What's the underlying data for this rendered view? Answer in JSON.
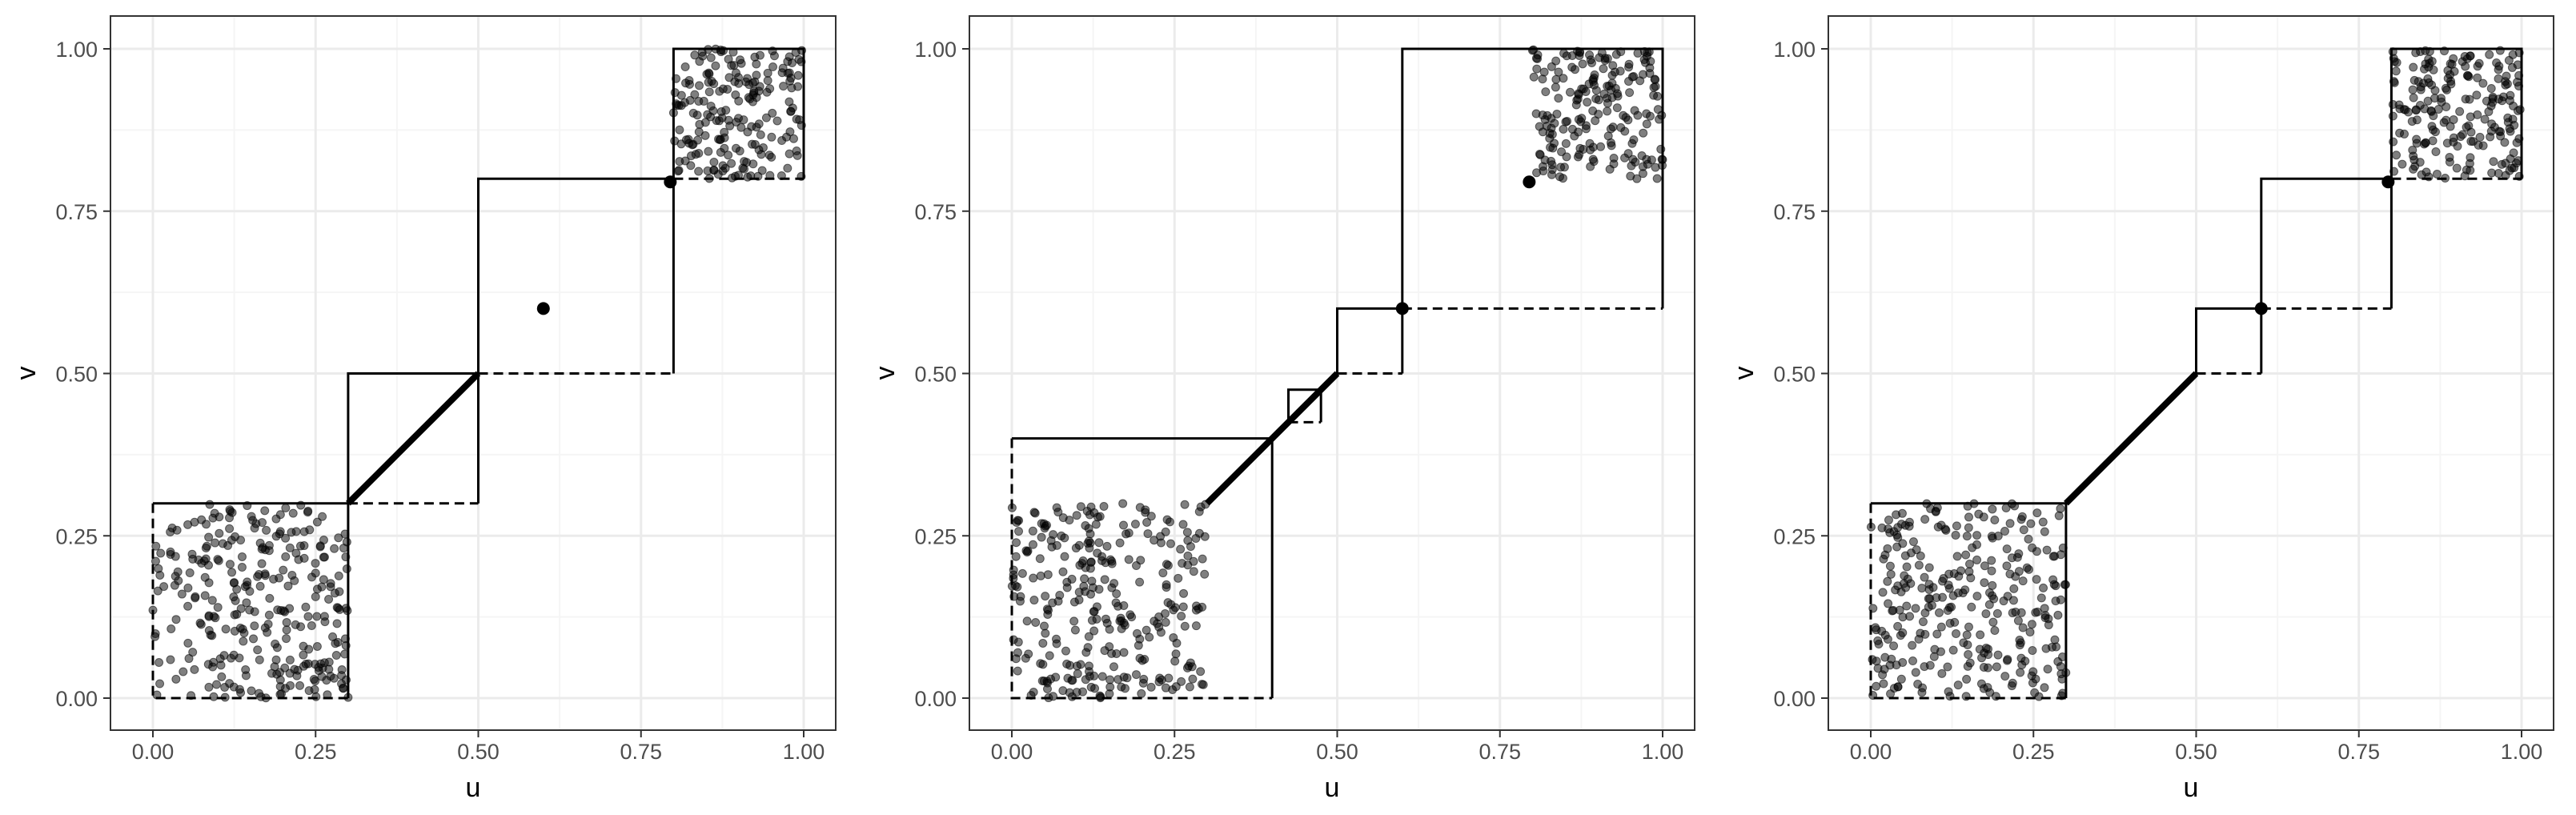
{
  "chart_data": [
    {
      "type": "scatter",
      "title": "",
      "xlabel": "u",
      "ylabel": "v",
      "xlim": [
        0,
        1
      ],
      "ylim": [
        0,
        1
      ],
      "x_ticks": [
        "0.00",
        "0.25",
        "0.50",
        "0.75",
        "1.00"
      ],
      "y_ticks": [
        "0.00",
        "0.25",
        "0.50",
        "0.75",
        "1.00"
      ],
      "grid": true,
      "theme": "bw",
      "scatter_regions": [
        {
          "u": [
            0.0,
            0.3
          ],
          "v": [
            0.0,
            0.3
          ],
          "n": 300
        },
        {
          "u": [
            0.8,
            1.0
          ],
          "v": [
            0.8,
            1.0
          ],
          "n": 200
        }
      ],
      "points": [
        [
          0.6,
          0.6
        ],
        [
          0.795,
          0.795
        ]
      ],
      "diagonal_segments": [
        {
          "from": [
            0.3,
            0.3
          ],
          "to": [
            0.5,
            0.5
          ]
        }
      ],
      "solid_lines": [
        [
          [
            0.0,
            0.3
          ],
          [
            0.3,
            0.3
          ],
          [
            0.3,
            0.0
          ]
        ],
        [
          [
            0.3,
            0.3
          ],
          [
            0.3,
            0.5
          ],
          [
            0.5,
            0.5
          ],
          [
            0.5,
            0.3
          ]
        ],
        [
          [
            0.5,
            0.5
          ],
          [
            0.5,
            0.8
          ],
          [
            0.8,
            0.8
          ],
          [
            0.8,
            0.5
          ]
        ],
        [
          [
            0.8,
            0.8
          ],
          [
            0.8,
            1.0
          ],
          [
            1.0,
            1.0
          ],
          [
            1.0,
            0.8
          ]
        ]
      ],
      "dashed_lines": [
        [
          [
            0.0,
            0.3
          ],
          [
            0.0,
            0.0
          ],
          [
            0.3,
            0.0
          ]
        ],
        [
          [
            0.3,
            0.3
          ],
          [
            0.5,
            0.3
          ]
        ],
        [
          [
            0.5,
            0.5
          ],
          [
            0.8,
            0.5
          ]
        ],
        [
          [
            0.8,
            0.8
          ],
          [
            1.0,
            0.8
          ]
        ]
      ]
    },
    {
      "type": "scatter",
      "title": "",
      "xlabel": "u",
      "ylabel": "v",
      "xlim": [
        0,
        1
      ],
      "ylim": [
        0,
        1
      ],
      "x_ticks": [
        "0.00",
        "0.25",
        "0.50",
        "0.75",
        "1.00"
      ],
      "y_ticks": [
        "0.00",
        "0.25",
        "0.50",
        "0.75",
        "1.00"
      ],
      "grid": true,
      "theme": "bw",
      "scatter_regions": [
        {
          "u": [
            0.0,
            0.3
          ],
          "v": [
            0.0,
            0.3
          ],
          "n": 300
        },
        {
          "u": [
            0.8,
            1.0
          ],
          "v": [
            0.8,
            1.0
          ],
          "n": 200
        }
      ],
      "points": [
        [
          0.6,
          0.6
        ],
        [
          0.795,
          0.795
        ]
      ],
      "diagonal_segments": [
        {
          "from": [
            0.3,
            0.3
          ],
          "to": [
            0.5,
            0.5
          ]
        }
      ],
      "solid_lines": [
        [
          [
            0.0,
            0.4
          ],
          [
            0.4,
            0.4
          ],
          [
            0.4,
            0.0
          ]
        ],
        [
          [
            0.425,
            0.425
          ],
          [
            0.425,
            0.475
          ],
          [
            0.475,
            0.475
          ],
          [
            0.475,
            0.425
          ]
        ],
        [
          [
            0.5,
            0.5
          ],
          [
            0.5,
            0.6
          ],
          [
            0.6,
            0.6
          ],
          [
            0.6,
            0.5
          ]
        ],
        [
          [
            0.6,
            0.6
          ],
          [
            0.6,
            1.0
          ],
          [
            1.0,
            1.0
          ],
          [
            1.0,
            0.6
          ]
        ]
      ],
      "dashed_lines": [
        [
          [
            0.0,
            0.4
          ],
          [
            0.0,
            0.0
          ],
          [
            0.4,
            0.0
          ]
        ],
        [
          [
            0.425,
            0.425
          ],
          [
            0.475,
            0.425
          ]
        ],
        [
          [
            0.5,
            0.5
          ],
          [
            0.6,
            0.5
          ]
        ],
        [
          [
            0.6,
            0.6
          ],
          [
            1.0,
            0.6
          ]
        ]
      ]
    },
    {
      "type": "scatter",
      "title": "",
      "xlabel": "u",
      "ylabel": "v",
      "xlim": [
        0,
        1
      ],
      "ylim": [
        0,
        1
      ],
      "x_ticks": [
        "0.00",
        "0.25",
        "0.50",
        "0.75",
        "1.00"
      ],
      "y_ticks": [
        "0.00",
        "0.25",
        "0.50",
        "0.75",
        "1.00"
      ],
      "grid": true,
      "theme": "bw",
      "scatter_regions": [
        {
          "u": [
            0.0,
            0.3
          ],
          "v": [
            0.0,
            0.3
          ],
          "n": 300
        },
        {
          "u": [
            0.8,
            1.0
          ],
          "v": [
            0.8,
            1.0
          ],
          "n": 200
        }
      ],
      "points": [
        [
          0.6,
          0.6
        ],
        [
          0.795,
          0.795
        ]
      ],
      "diagonal_segments": [
        {
          "from": [
            0.3,
            0.3
          ],
          "to": [
            0.5,
            0.5
          ]
        }
      ],
      "solid_lines": [
        [
          [
            0.0,
            0.3
          ],
          [
            0.3,
            0.3
          ],
          [
            0.3,
            0.0
          ]
        ],
        [
          [
            0.5,
            0.5
          ],
          [
            0.5,
            0.6
          ],
          [
            0.6,
            0.6
          ],
          [
            0.6,
            0.5
          ]
        ],
        [
          [
            0.6,
            0.6
          ],
          [
            0.6,
            0.8
          ],
          [
            0.8,
            0.8
          ],
          [
            0.8,
            0.6
          ]
        ],
        [
          [
            0.8,
            0.8
          ],
          [
            0.8,
            1.0
          ],
          [
            1.0,
            1.0
          ],
          [
            1.0,
            0.8
          ]
        ]
      ],
      "dashed_lines": [
        [
          [
            0.0,
            0.3
          ],
          [
            0.0,
            0.0
          ],
          [
            0.3,
            0.0
          ]
        ],
        [
          [
            0.5,
            0.5
          ],
          [
            0.6,
            0.5
          ]
        ],
        [
          [
            0.6,
            0.6
          ],
          [
            0.8,
            0.6
          ]
        ],
        [
          [
            0.8,
            0.8
          ],
          [
            1.0,
            0.8
          ]
        ]
      ]
    }
  ],
  "colors": {
    "background": "#ffffff",
    "grid_major": "#ebebeb",
    "grid_minor": "#f5f5f5",
    "panel_border": "#333333",
    "tick_text": "#4d4d4d",
    "axis_title": "#000000",
    "line": "#000000",
    "point": "#000000"
  }
}
